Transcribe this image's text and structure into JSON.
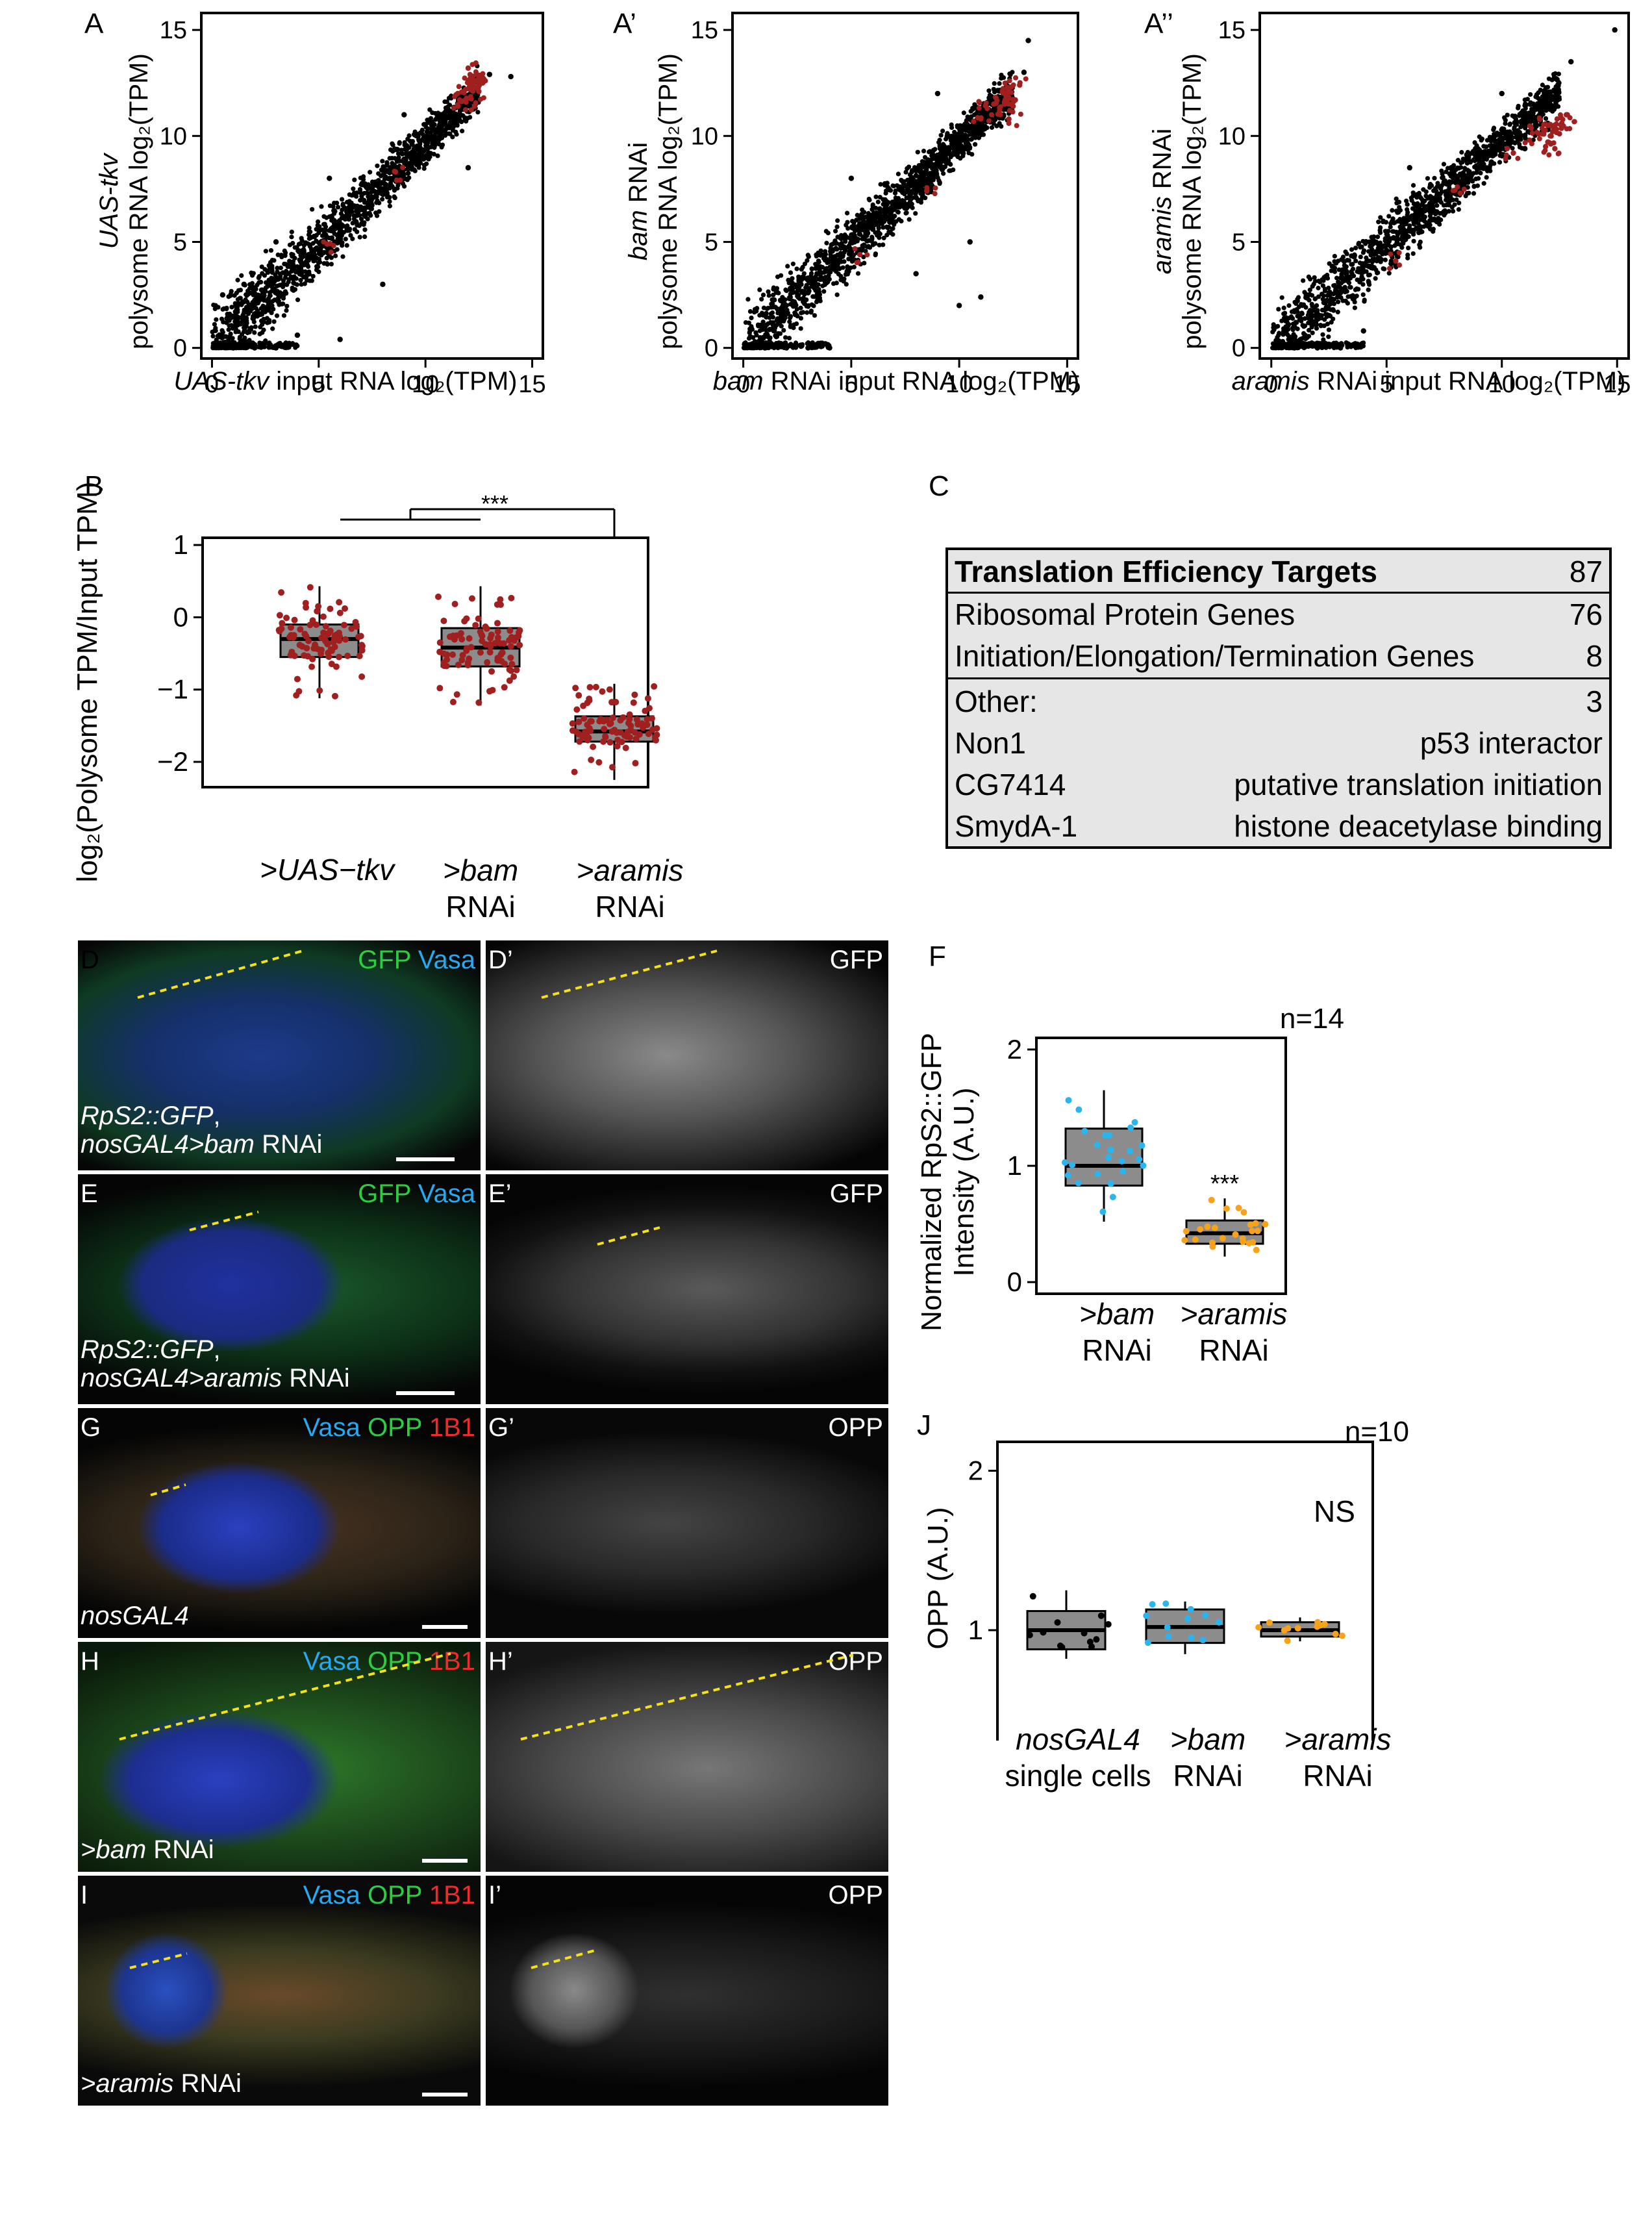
{
  "panels": {
    "A": {
      "label": "A",
      "ylabel_it": "UAS-tkv",
      "ylabel": "polysome RNA log₂(TPM)",
      "xlabel_it": "UAS-tkv",
      "xlabel": " input RNA log₂(TPM)"
    },
    "A1": {
      "label": "A’",
      "ylabel_it": "bam",
      "ylabel_rest": " RNAi",
      "ylabel": "polysome RNA log₂(TPM)",
      "xlabel_it": "bam",
      "xlabel": " RNAi input RNA log₂(TPM)"
    },
    "A2": {
      "label": "A’’",
      "ylabel_it": "aramis",
      "ylabel_rest": " RNAi",
      "ylabel": "polysome RNA log₂(TPM)",
      "xlabel_it": "aramis",
      "xlabel": " RNAi input RNA log₂(TPM)"
    },
    "B": {
      "label": "B",
      "ylabel": "log₂(Polysome TPM/Input TPM)",
      "sig": "***"
    },
    "C": {
      "label": "C"
    },
    "D": {
      "label": "D",
      "ch1": "GFP",
      "ch2": "Vasa",
      "geno1": "RpS2::GFP",
      "geno1_sep": ",",
      "geno2_it": "nosGAL4>bam",
      "geno2": " RNAi"
    },
    "D1": {
      "label": "D’",
      "ch": "GFP"
    },
    "E": {
      "label": "E",
      "ch1": "GFP",
      "ch2": "Vasa",
      "geno1": "RpS2::GFP",
      "geno1_sep": ",",
      "geno2_it": "nosGAL4>aramis",
      "geno2": " RNAi"
    },
    "E1": {
      "label": "E’",
      "ch": "GFP"
    },
    "F": {
      "label": "F",
      "ylabel": "Normalized RpS2::GFP Intensity (A.U.)",
      "sig": "***"
    },
    "G": {
      "label": "G",
      "ch1": "Vasa",
      "ch2": "OPP",
      "ch3": "1B1",
      "geno_it": "nosGAL4"
    },
    "G1": {
      "label": "G’",
      "ch": "OPP"
    },
    "H": {
      "label": "H",
      "ch1": "Vasa",
      "ch2": "OPP",
      "ch3": "1B1",
      "geno_it": ">bam",
      "geno": " RNAi"
    },
    "H1": {
      "label": "H’",
      "ch": "OPP"
    },
    "I": {
      "label": "I",
      "ch1": "Vasa",
      "ch2": "OPP",
      "ch3": "1B1",
      "geno_it": ">aramis",
      "geno": " RNAi"
    },
    "I1": {
      "label": "I’",
      "ch": "OPP"
    },
    "J": {
      "label": "J",
      "ylabel": "OPP (A.U.)",
      "sig": "NS"
    }
  },
  "table_c": {
    "header": {
      "name": "Translation Efficiency Targets",
      "count": "87"
    },
    "rows": [
      {
        "name": "Ribosomal Protein Genes",
        "value": "76"
      },
      {
        "name": "Initiation/Elongation/Termination Genes",
        "value": "8"
      },
      {
        "name": "Other:",
        "value": "3"
      },
      {
        "name": "Non1",
        "value": "p53 interactor"
      },
      {
        "name": "CG7414",
        "value": "putative translation initiation"
      },
      {
        "name": "SmydA-1",
        "value": "histone deacetylase binding"
      }
    ]
  },
  "chart_data": [
    {
      "type": "scatter",
      "panel": "A",
      "x_ticks": [
        0,
        5,
        10,
        15
      ],
      "y_ticks": [
        0,
        5,
        10,
        15
      ],
      "xlim": [
        -0.5,
        15.5
      ],
      "ylim": [
        -0.5,
        15.8
      ],
      "series": [
        {
          "color": "#000000",
          "points": [
            [
              0.5,
              0.2
            ],
            [
              1,
              1
            ],
            [
              2,
              1.6
            ],
            [
              3,
              2.6
            ],
            [
              4,
              3.6
            ],
            [
              5,
              4.6
            ],
            [
              6,
              5.6
            ],
            [
              7,
              6.6
            ],
            [
              8,
              7.8
            ],
            [
              9,
              8.9
            ],
            [
              10,
              9.8
            ],
            [
              11,
              10.9
            ],
            [
              12,
              11.8
            ],
            [
              13,
              12.9
            ],
            [
              14,
              12.8
            ],
            [
              1.5,
              3
            ],
            [
              3,
              5
            ],
            [
              0.5,
              2.5
            ],
            [
              8,
              3
            ],
            [
              4,
              0.6
            ],
            [
              1,
              0
            ],
            [
              2,
              0
            ],
            [
              3,
              0
            ],
            [
              6,
              0.4
            ],
            [
              5.5,
              8
            ],
            [
              9,
              11
            ],
            [
              12,
              8.5
            ]
          ]
        },
        {
          "color": "#a01f1f",
          "points": [
            [
              11.8,
              12.1
            ],
            [
              12,
              12.6
            ],
            [
              12.2,
              12.4
            ],
            [
              12.4,
              12.9
            ],
            [
              12.1,
              12.2
            ],
            [
              12.6,
              12.6
            ],
            [
              11.6,
              11.7
            ],
            [
              12.3,
              11.4
            ],
            [
              12.8,
              12.6
            ],
            [
              8.6,
              8.3
            ],
            [
              5.4,
              4.9
            ],
            [
              12,
              13.2
            ],
            [
              11.9,
              11.6
            ],
            [
              12.5,
              12.1
            ]
          ]
        }
      ]
    },
    {
      "type": "scatter",
      "panel": "A’",
      "x_ticks": [
        0,
        5,
        10,
        15
      ],
      "y_ticks": [
        0,
        5,
        10,
        15
      ],
      "xlim": [
        -0.5,
        15.5
      ],
      "ylim": [
        -0.5,
        15.8
      ],
      "series": [
        {
          "color": "#000000",
          "points": [
            [
              0.5,
              0.2
            ],
            [
              1,
              1
            ],
            [
              2,
              1.6
            ],
            [
              3,
              2.6
            ],
            [
              4,
              3.6
            ],
            [
              5,
              4.6
            ],
            [
              6,
              5.6
            ],
            [
              7,
              6.6
            ],
            [
              8,
              7.8
            ],
            [
              9,
              8.9
            ],
            [
              10,
              9.8
            ],
            [
              11,
              10.9
            ],
            [
              12,
              11.8
            ],
            [
              13,
              13
            ],
            [
              13.2,
              14.5
            ],
            [
              1,
              0
            ],
            [
              2,
              0
            ],
            [
              3,
              0
            ],
            [
              4,
              0
            ],
            [
              10,
              2
            ],
            [
              11,
              2.4
            ],
            [
              10.5,
              5
            ],
            [
              8,
              3.5
            ],
            [
              5,
              8
            ],
            [
              9,
              12
            ]
          ]
        },
        {
          "color": "#a01f1f",
          "points": [
            [
              11.6,
              11.5
            ],
            [
              12,
              12.1
            ],
            [
              12.2,
              11.8
            ],
            [
              12.4,
              12.3
            ],
            [
              12.1,
              11.5
            ],
            [
              12.6,
              11.7
            ],
            [
              11.3,
              11.3
            ],
            [
              12.3,
              10.8
            ],
            [
              12.8,
              12.4
            ],
            [
              11,
              10.8
            ],
            [
              8.5,
              7.4
            ],
            [
              5.4,
              4.4
            ],
            [
              11.9,
              11
            ],
            [
              12.5,
              11.4
            ]
          ]
        }
      ]
    },
    {
      "type": "scatter",
      "panel": "A’’",
      "x_ticks": [
        0,
        5,
        10,
        15
      ],
      "y_ticks": [
        0,
        5,
        10,
        15
      ],
      "xlim": [
        -0.5,
        15.5
      ],
      "ylim": [
        -0.5,
        15.8
      ],
      "series": [
        {
          "color": "#000000",
          "points": [
            [
              0.5,
              0.2
            ],
            [
              1,
              1
            ],
            [
              2,
              1.6
            ],
            [
              3,
              2.6
            ],
            [
              4,
              3.6
            ],
            [
              5,
              4.6
            ],
            [
              6,
              5.6
            ],
            [
              7,
              6.6
            ],
            [
              8,
              7.8
            ],
            [
              9,
              8.9
            ],
            [
              10,
              9.8
            ],
            [
              11,
              10.9
            ],
            [
              12,
              11.8
            ],
            [
              13,
              13.5
            ],
            [
              14.9,
              15
            ],
            [
              1,
              0
            ],
            [
              2,
              0
            ],
            [
              3,
              0
            ],
            [
              12,
              10.3
            ],
            [
              11,
              9.4
            ],
            [
              6,
              8.5
            ],
            [
              10,
              12
            ],
            [
              4,
              0.8
            ]
          ]
        },
        {
          "color": "#a01f1f",
          "points": [
            [
              11.6,
              10.1
            ],
            [
              12,
              10.5
            ],
            [
              12.2,
              10.2
            ],
            [
              12.4,
              10.8
            ],
            [
              12.1,
              10
            ],
            [
              12.6,
              10.6
            ],
            [
              11.2,
              9.8
            ],
            [
              12.3,
              9.4
            ],
            [
              12.8,
              11
            ],
            [
              10.5,
              9.2
            ],
            [
              8.2,
              7.3
            ],
            [
              5.4,
              4.1
            ],
            [
              11.9,
              9.5
            ],
            [
              12.5,
              10.1
            ]
          ]
        }
      ]
    },
    {
      "type": "box",
      "panel": "B",
      "categories": [
        ">UAS−tkv",
        ">bam RNAi",
        ">aramis RNAi"
      ],
      "y_ticks": [
        1,
        0,
        -1,
        -2
      ],
      "ylim": [
        -2.35,
        1.1
      ],
      "boxes": [
        {
          "q1": -0.55,
          "median": -0.3,
          "q3": -0.1,
          "whisker_low": -1.12,
          "whisker_high": 0.43
        },
        {
          "q1": -0.68,
          "median": -0.42,
          "q3": -0.15,
          "whisker_low": -1.22,
          "whisker_high": 0.43
        },
        {
          "q1": -1.72,
          "median": -1.58,
          "q3": -1.37,
          "whisker_low": -2.25,
          "whisker_high": -0.92
        }
      ],
      "point_color": "#a01f1f",
      "significance": "***"
    },
    {
      "type": "box",
      "panel": "F",
      "categories": [
        ">bam RNAi",
        ">aramis RNAi"
      ],
      "y_ticks": [
        0,
        1,
        2
      ],
      "ylim": [
        -0.1,
        2.1
      ],
      "annotation": "n=14",
      "boxes": [
        {
          "q1": 0.83,
          "median": 1.0,
          "q3": 1.32,
          "whisker_low": 0.52,
          "whisker_high": 1.65,
          "color": "#29b6f0"
        },
        {
          "q1": 0.33,
          "median": 0.42,
          "q3": 0.53,
          "whisker_low": 0.22,
          "whisker_high": 0.72,
          "color": "#f7a21b"
        }
      ],
      "significance": "***"
    },
    {
      "type": "box",
      "panel": "J",
      "categories": [
        "nosGAL4 single cells",
        ">bam RNAi",
        ">aramis RNAi"
      ],
      "y_ticks": [
        0,
        1,
        2
      ],
      "ylim": [
        -0.1,
        2.1
      ],
      "annotation": "n=10",
      "boxes": [
        {
          "q1": 0.88,
          "median": 1.0,
          "q3": 1.12,
          "whisker_low": 0.82,
          "whisker_high": 1.25,
          "color": "#000000"
        },
        {
          "q1": 0.92,
          "median": 1.02,
          "q3": 1.13,
          "whisker_low": 0.85,
          "whisker_high": 1.18,
          "color": "#29b6f0"
        },
        {
          "q1": 0.96,
          "median": 1.0,
          "q3": 1.05,
          "whisker_low": 0.93,
          "whisker_high": 1.08,
          "color": "#f7a21b"
        }
      ],
      "significance": "NS"
    }
  ]
}
